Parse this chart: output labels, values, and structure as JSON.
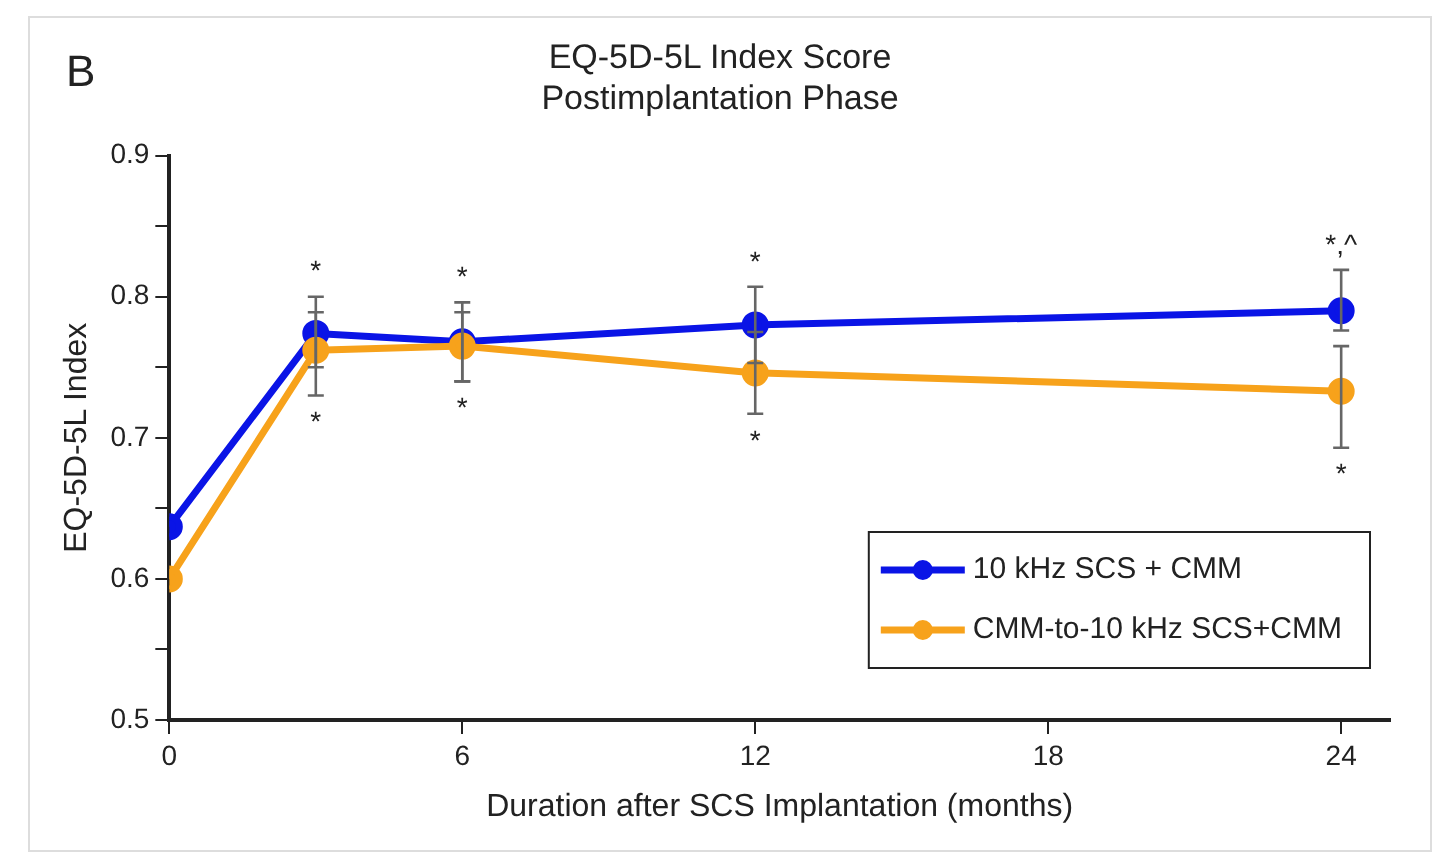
{
  "chart_data": {
    "type": "line",
    "title": "EQ-5D-5L Index Score\nPostimplantation Phase",
    "xlabel": "Duration after SCS Implantation (months)",
    "ylabel": "EQ-5D-5L Index",
    "x": [
      0,
      3,
      6,
      12,
      24
    ],
    "series": [
      {
        "name": "10 kHz SCS + CMM",
        "color": "#0a14e6",
        "values": [
          0.637,
          0.774,
          0.768,
          0.78,
          0.79
        ],
        "errors": [
          null,
          [
            0.75,
            0.8
          ],
          [
            0.74,
            0.796
          ],
          [
            0.753,
            0.807
          ],
          [
            0.776,
            0.819
          ]
        ]
      },
      {
        "name": "CMM-to-10 kHz SCS+CMM",
        "color": "#f7a21b",
        "values": [
          0.6,
          0.762,
          0.765,
          0.746,
          0.733
        ],
        "errors": [
          null,
          [
            0.73,
            0.789
          ],
          [
            0.74,
            0.789
          ],
          [
            0.717,
            0.775
          ],
          [
            0.693,
            0.765
          ]
        ]
      }
    ],
    "xlim": [
      0,
      25
    ],
    "xticks": [
      0,
      6,
      12,
      18,
      24
    ],
    "ylim": [
      0.5,
      0.9
    ],
    "yticks": [
      0.5,
      {
        "value": 0.55,
        "label": null
      },
      0.6,
      {
        "value": 0.65,
        "label": null
      },
      0.7,
      {
        "value": 0.75,
        "label": null
      },
      0.8,
      {
        "value": 0.85,
        "label": null
      },
      0.9
    ],
    "annotations": [
      "B",
      {
        "text": "*",
        "x": 3,
        "y": 0.774
      },
      {
        "text": "*",
        "x": 3,
        "y": 0.762
      },
      {
        "text": "*",
        "x": 6,
        "y": 0.768
      },
      {
        "text": "*",
        "x": 6,
        "y": 0.765
      },
      {
        "text": "*",
        "x": 12,
        "y": 0.78
      },
      {
        "text": "*",
        "x": 12,
        "y": 0.746
      },
      {
        "text": "*,^",
        "x": 24,
        "y": 0.79
      },
      {
        "text": "*",
        "x": 24,
        "y": 0.733
      }
    ],
    "grid": false,
    "legend": "bottom right",
    "marker": "circle",
    "line_style": "solid"
  }
}
